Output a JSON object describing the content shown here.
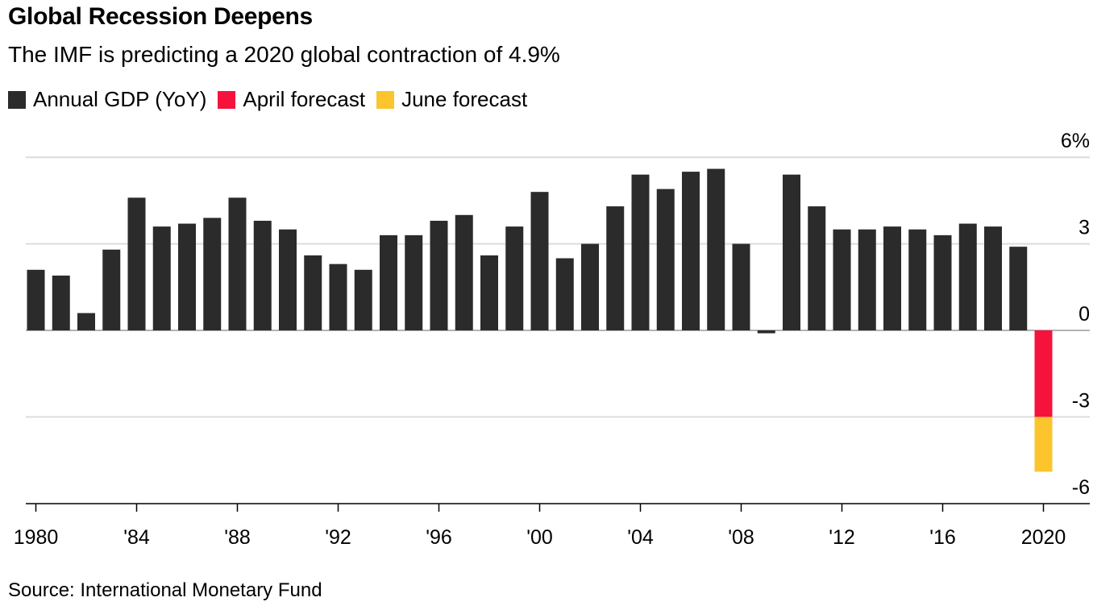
{
  "chart_data": {
    "type": "bar",
    "title": "Global Recession Deepens",
    "subtitle": "The IMF is predicting a 2020 global contraction of 4.9%",
    "source": "Source: International Monetary Fund",
    "legend": [
      {
        "name": "Annual GDP (YoY)",
        "color": "#2b2b2b"
      },
      {
        "name": "April forecast",
        "color": "#f5133d"
      },
      {
        "name": "June forecast",
        "color": "#fcc42d"
      }
    ],
    "legend_position": "top-left",
    "grid": true,
    "y_axis_side": "right",
    "ylim": [
      -6,
      6
    ],
    "y_ticks": [
      {
        "value": 6,
        "label": "6%"
      },
      {
        "value": 3,
        "label": "3"
      },
      {
        "value": 0,
        "label": "0"
      },
      {
        "value": -3,
        "label": "-3"
      },
      {
        "value": -6,
        "label": "-6"
      }
    ],
    "x_ticks": [
      {
        "year": 1980,
        "label": "1980"
      },
      {
        "year": 1984,
        "label": "'84"
      },
      {
        "year": 1988,
        "label": "'88"
      },
      {
        "year": 1992,
        "label": "'92"
      },
      {
        "year": 1996,
        "label": "'96"
      },
      {
        "year": 2000,
        "label": "'00"
      },
      {
        "year": 2004,
        "label": "'04"
      },
      {
        "year": 2008,
        "label": "'08"
      },
      {
        "year": 2012,
        "label": "'12"
      },
      {
        "year": 2016,
        "label": "'16"
      },
      {
        "year": 2020,
        "label": "2020"
      }
    ],
    "series": [
      {
        "name": "Annual GDP (YoY)",
        "color": "#2b2b2b",
        "x": [
          1980,
          1981,
          1982,
          1983,
          1984,
          1985,
          1986,
          1987,
          1988,
          1989,
          1990,
          1991,
          1992,
          1993,
          1994,
          1995,
          1996,
          1997,
          1998,
          1999,
          2000,
          2001,
          2002,
          2003,
          2004,
          2005,
          2006,
          2007,
          2008,
          2009,
          2010,
          2011,
          2012,
          2013,
          2014,
          2015,
          2016,
          2017,
          2018,
          2019
        ],
        "values": [
          2.1,
          1.9,
          0.6,
          2.8,
          4.6,
          3.6,
          3.7,
          3.9,
          4.6,
          3.8,
          3.5,
          2.6,
          2.3,
          2.1,
          3.3,
          3.3,
          3.8,
          4.0,
          2.6,
          3.6,
          4.8,
          2.5,
          3.0,
          4.3,
          5.4,
          4.9,
          5.5,
          5.6,
          3.0,
          -0.1,
          5.4,
          4.3,
          3.5,
          3.5,
          3.6,
          3.5,
          3.3,
          3.7,
          3.6,
          2.9
        ]
      },
      {
        "name": "April forecast",
        "color": "#f5133d",
        "x": [
          2020
        ],
        "values": [
          -3.0
        ]
      },
      {
        "name": "June forecast",
        "color": "#fcc42d",
        "x": [
          2020
        ],
        "values": [
          -1.9
        ]
      }
    ]
  }
}
